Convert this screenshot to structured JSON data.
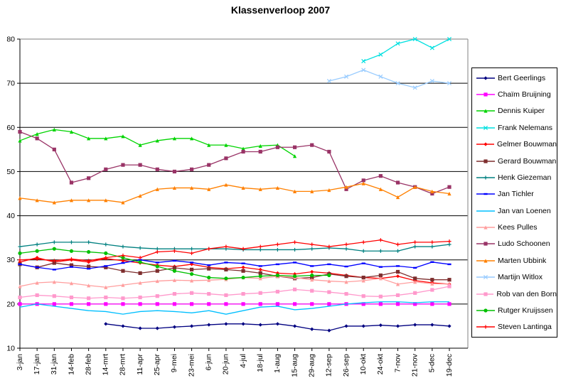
{
  "title": "Klassenverloop 2007",
  "colors": {
    "background": "#FFFFFF",
    "gridline": "#000000",
    "plot_border": "#969696",
    "axis": "#000000"
  },
  "chart_data": {
    "type": "line",
    "title": "Klassenverloop 2007",
    "xlabel": "",
    "ylabel": "",
    "ylim": [
      10,
      80
    ],
    "y_tick_step": 10,
    "grid": "horizontal",
    "legend_position": "right",
    "x_labels": [
      "3-jan",
      "17-jan",
      "31-jan",
      "14-feb",
      "28-feb",
      "14-mrt",
      "28-mrt",
      "11-apr",
      "25-apr",
      "9-mei",
      "23-mei",
      "6-jun",
      "20-jun",
      "4-jul",
      "18-jul",
      "1-aug",
      "15-aug",
      "29-aug",
      "12-sep",
      "26-sep",
      "10-okt",
      "24-okt",
      "7-nov",
      "21-nov",
      "5-dec",
      "19-dec"
    ],
    "series": [
      {
        "name": "Bert Geerlings",
        "color": "#000080",
        "marker": "diamond",
        "values": [
          null,
          null,
          null,
          null,
          null,
          15.5,
          15,
          14.5,
          14.5,
          14.8,
          15,
          15.3,
          15.5,
          15.5,
          15.3,
          15.5,
          15,
          14.3,
          14,
          15,
          15,
          15.2,
          15,
          15.3,
          15.3,
          15
        ]
      },
      {
        "name": "Chaïm Bruijning",
        "color": "#FF00FF",
        "marker": "square",
        "values": [
          20,
          20,
          20,
          20,
          20,
          20,
          20,
          20,
          20,
          20,
          20,
          20,
          20,
          20,
          20,
          20,
          20,
          20,
          20,
          20,
          20,
          20,
          20,
          20,
          20,
          20
        ]
      },
      {
        "name": "Dennis Kuiper",
        "color": "#00D400",
        "marker": "triangle",
        "values": [
          57,
          58.5,
          59.5,
          59,
          57.5,
          57.5,
          58,
          56,
          57,
          57.5,
          57.5,
          56,
          56,
          55.2,
          55.8,
          56,
          53.5,
          null,
          null,
          null,
          null,
          null,
          null,
          null,
          null,
          null
        ]
      },
      {
        "name": "Frank Nelemans",
        "color": "#00E0E0",
        "marker": "x",
        "values": [
          null,
          null,
          null,
          null,
          null,
          null,
          null,
          null,
          null,
          null,
          null,
          null,
          null,
          null,
          null,
          null,
          null,
          null,
          null,
          null,
          75,
          76.5,
          79,
          80,
          78,
          80
        ]
      },
      {
        "name": "Gelmer Bouwman",
        "color": "#FF0000",
        "marker": "diamond",
        "values": [
          29.5,
          30.5,
          29.5,
          30,
          29.5,
          30.3,
          29.8,
          29.3,
          28.8,
          28.5,
          29,
          28.3,
          28,
          28.3,
          27.8,
          27,
          26.8,
          27.3,
          27,
          26.5,
          26,
          25.8,
          26.3,
          25.3,
          24.8,
          24.5
        ]
      },
      {
        "name": "Gerard Bouwman",
        "color": "#7E2E2E",
        "marker": "square",
        "values": [
          29,
          28.3,
          29.3,
          28.8,
          28.5,
          28.3,
          27.5,
          27,
          27.5,
          28.2,
          27.8,
          28,
          27.8,
          27.5,
          27,
          26.3,
          25.8,
          26,
          26.8,
          26.3,
          26,
          26.5,
          27.3,
          25.8,
          25.5,
          25.5
        ]
      },
      {
        "name": "Henk Giezeman",
        "color": "#008080",
        "marker": "plus",
        "values": [
          33,
          33.5,
          34,
          34,
          34,
          33.5,
          33,
          32.7,
          32.5,
          32.5,
          32.5,
          32.5,
          32.5,
          32.3,
          32.3,
          32.3,
          32.3,
          32.5,
          32.7,
          32.5,
          32,
          32,
          32,
          33,
          33,
          33.5
        ]
      },
      {
        "name": "Jan Tichler",
        "color": "#0000FF",
        "marker": "dash",
        "values": [
          29,
          28.3,
          27.8,
          28.4,
          28,
          28.6,
          29.3,
          30,
          29.4,
          29.8,
          29.4,
          28.8,
          29.4,
          29.2,
          28.6,
          29,
          29.4,
          28.6,
          29,
          28.5,
          29.2,
          28.4,
          28.6,
          28.2,
          29.5,
          29
        ]
      },
      {
        "name": "Jan van Loenen",
        "color": "#00BFFF",
        "marker": "none",
        "values": [
          19.3,
          20,
          19.5,
          19,
          18.5,
          18.3,
          17.7,
          18.3,
          18.5,
          18.3,
          18,
          18.5,
          17.7,
          18.5,
          19.3,
          19.5,
          18.7,
          19,
          19.5,
          20,
          20.3,
          20.5,
          20.5,
          20.3,
          20.5,
          20.5
        ]
      },
      {
        "name": "Kees Pulles",
        "color": "#FF9E9E",
        "marker": "triangle",
        "values": [
          24,
          24.8,
          25,
          24.7,
          24.2,
          23.8,
          24.3,
          24.8,
          25.2,
          25.4,
          25.3,
          25.4,
          25.6,
          26,
          25.8,
          26.3,
          26,
          25.5,
          25.2,
          25,
          25.3,
          25.8,
          24.5,
          25,
          24.6,
          24.5
        ]
      },
      {
        "name": "Ludo Schoonen",
        "color": "#993366",
        "marker": "square",
        "values": [
          59,
          57.5,
          55,
          47.5,
          48.5,
          50.5,
          51.5,
          51.5,
          50.5,
          50,
          50.5,
          51.5,
          53,
          54.5,
          54.5,
          55.5,
          55.5,
          56,
          54.5,
          46,
          48,
          49,
          47.5,
          46.5,
          45,
          46.5
        ]
      },
      {
        "name": "Marten Ubbink",
        "color": "#FF8000",
        "marker": "triangle",
        "values": [
          44,
          43.5,
          43,
          43.5,
          43.5,
          43.5,
          43,
          44.5,
          46,
          46.3,
          46.3,
          46,
          47,
          46.3,
          46,
          46.3,
          45.5,
          45.5,
          45.8,
          46.5,
          47.3,
          46,
          44.2,
          46.5,
          45.5,
          45
        ]
      },
      {
        "name": "Martijn Witlox",
        "color": "#99CCFF",
        "marker": "x",
        "values": [
          null,
          null,
          null,
          null,
          null,
          null,
          null,
          null,
          null,
          null,
          null,
          null,
          null,
          null,
          null,
          null,
          null,
          null,
          70.5,
          71.5,
          73,
          71.5,
          70,
          69,
          70.5,
          70
        ]
      },
      {
        "name": "Rob van den Born",
        "color": "#FF99CC",
        "marker": "square",
        "values": [
          21.5,
          22,
          21.8,
          21.5,
          21.3,
          21.5,
          21.3,
          21.5,
          21.8,
          22.3,
          22.5,
          22.3,
          22,
          22.3,
          22.5,
          22.8,
          23.3,
          23,
          22.7,
          22.3,
          21.8,
          21.7,
          22,
          22.5,
          23.2,
          24
        ]
      },
      {
        "name": "Rutger Kruijssen",
        "color": "#00C000",
        "marker": "circle",
        "values": [
          31.5,
          32,
          32.5,
          32,
          31.8,
          31.5,
          30.5,
          29.5,
          28.5,
          27.5,
          26.8,
          26,
          25.8,
          26,
          26.3,
          26.5,
          26.3,
          26.5,
          26.5,
          null,
          null,
          null,
          null,
          null,
          null,
          null
        ]
      },
      {
        "name": "Steven Lantinga",
        "color": "#FF0000",
        "marker": "plus",
        "values": [
          30,
          30.2,
          29.8,
          30.2,
          29.8,
          30.5,
          31,
          30.5,
          31.8,
          32,
          31.5,
          32.5,
          33,
          32.5,
          33,
          33.5,
          34,
          33.5,
          33,
          33.5,
          34,
          34.5,
          33.5,
          34,
          34,
          34.2
        ]
      }
    ]
  }
}
